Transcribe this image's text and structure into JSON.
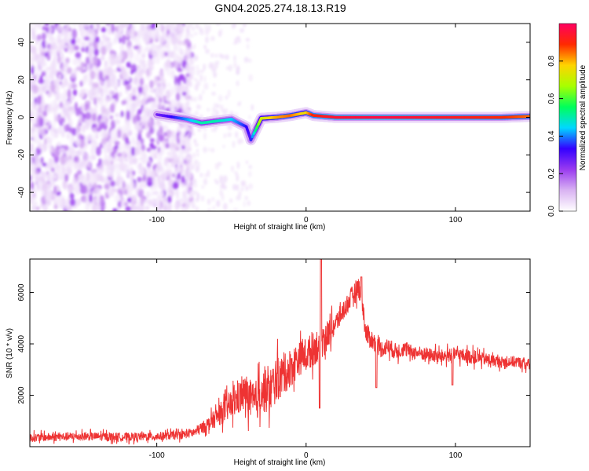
{
  "title": "GN04.2025.274.18.13.R19",
  "chart_data": [
    {
      "type": "heatmap",
      "xlabel": "Height of straight line (km)",
      "ylabel": "Frequency (Hz)",
      "xlim": [
        -185,
        150
      ],
      "ylim": [
        -50,
        50
      ],
      "xticks": [
        -100,
        0,
        100
      ],
      "yticks": [
        -40,
        -20,
        0,
        20,
        40
      ],
      "colorbar": {
        "label": "Normalized spectral amplitude",
        "range": [
          0,
          1
        ],
        "ticks": [
          0.0,
          0.2,
          0.4,
          0.6,
          0.8
        ],
        "tick_labels": [
          "0.0",
          "0.2",
          "0.4",
          "0.6",
          "0.8"
        ],
        "colors": [
          "#ffffff",
          "#d9b3f2",
          "#9a3bf0",
          "#3300ff",
          "#00d8ff",
          "#00ff5a",
          "#a8ff00",
          "#ffd400",
          "#ff2a00",
          "#ff0060"
        ]
      },
      "carrier_trace": [
        {
          "x": -100,
          "y": 1.5,
          "amp": 0.25
        },
        {
          "x": -80,
          "y": -1,
          "amp": 0.4
        },
        {
          "x": -70,
          "y": -3,
          "amp": 0.5
        },
        {
          "x": -60,
          "y": -2,
          "amp": 0.5
        },
        {
          "x": -50,
          "y": -1,
          "amp": 0.45
        },
        {
          "x": -40,
          "y": -5,
          "amp": 0.35
        },
        {
          "x": -37,
          "y": -12,
          "amp": 0.3
        },
        {
          "x": -30,
          "y": -0.5,
          "amp": 0.7
        },
        {
          "x": -20,
          "y": 0,
          "amp": 0.8
        },
        {
          "x": -10,
          "y": 1,
          "amp": 0.85
        },
        {
          "x": 0,
          "y": 2.5,
          "amp": 0.75
        },
        {
          "x": 5,
          "y": 1,
          "amp": 0.9
        },
        {
          "x": 20,
          "y": 0,
          "amp": 0.95
        },
        {
          "x": 50,
          "y": 0,
          "amp": 0.97
        },
        {
          "x": 100,
          "y": 0,
          "amp": 0.93
        },
        {
          "x": 130,
          "y": 0,
          "amp": 0.9
        },
        {
          "x": 150,
          "y": 0.5,
          "amp": 0.85
        }
      ],
      "noise_region_xmax": -80
    },
    {
      "type": "line",
      "xlabel": "Height of straight line (km)",
      "ylabel": "SNR (10 * v/v)",
      "xlim": [
        -185,
        150
      ],
      "ylim": [
        0,
        7300
      ],
      "xticks": [
        -100,
        0,
        100
      ],
      "yticks": [
        2000,
        4000,
        6000
      ],
      "color": "#ee3333",
      "series": [
        {
          "name": "SNR",
          "x": [
            -185,
            -150,
            -120,
            -100,
            -85,
            -75,
            -65,
            -55,
            -45,
            -40,
            -35,
            -30,
            -25,
            -20,
            -15,
            -10,
            -5,
            0,
            5,
            10,
            15,
            20,
            25,
            30,
            35,
            37,
            40,
            45,
            50,
            55,
            60,
            65,
            70,
            80,
            90,
            100,
            110,
            120,
            130,
            140,
            150
          ],
          "y": [
            350,
            400,
            380,
            400,
            450,
            550,
            900,
            1400,
            1900,
            2100,
            1600,
            2200,
            2100,
            2600,
            2800,
            3100,
            3400,
            3600,
            3800,
            4100,
            4400,
            4800,
            5300,
            5800,
            6200,
            6000,
            4400,
            4100,
            3800,
            3900,
            3700,
            3800,
            3700,
            3600,
            3500,
            3600,
            3500,
            3400,
            3300,
            3300,
            3200
          ],
          "amplitude": [
            300,
            300,
            300,
            300,
            300,
            350,
            500,
            900,
            1200,
            1300,
            1500,
            1500,
            1600,
            1600,
            1400,
            1400,
            1200,
            1200,
            1200,
            1300,
            1000,
            800,
            700,
            700,
            800,
            800,
            800,
            700,
            600,
            600,
            600,
            550,
            500,
            500,
            500,
            500,
            500,
            450,
            400,
            400,
            400
          ],
          "spikes": [
            {
              "x": 10,
              "y": 7300
            },
            {
              "x": 9,
              "y": 1500
            },
            {
              "x": 37,
              "y": 6600
            },
            {
              "x": 47,
              "y": 2300
            },
            {
              "x": 98,
              "y": 2400
            }
          ]
        }
      ]
    }
  ]
}
